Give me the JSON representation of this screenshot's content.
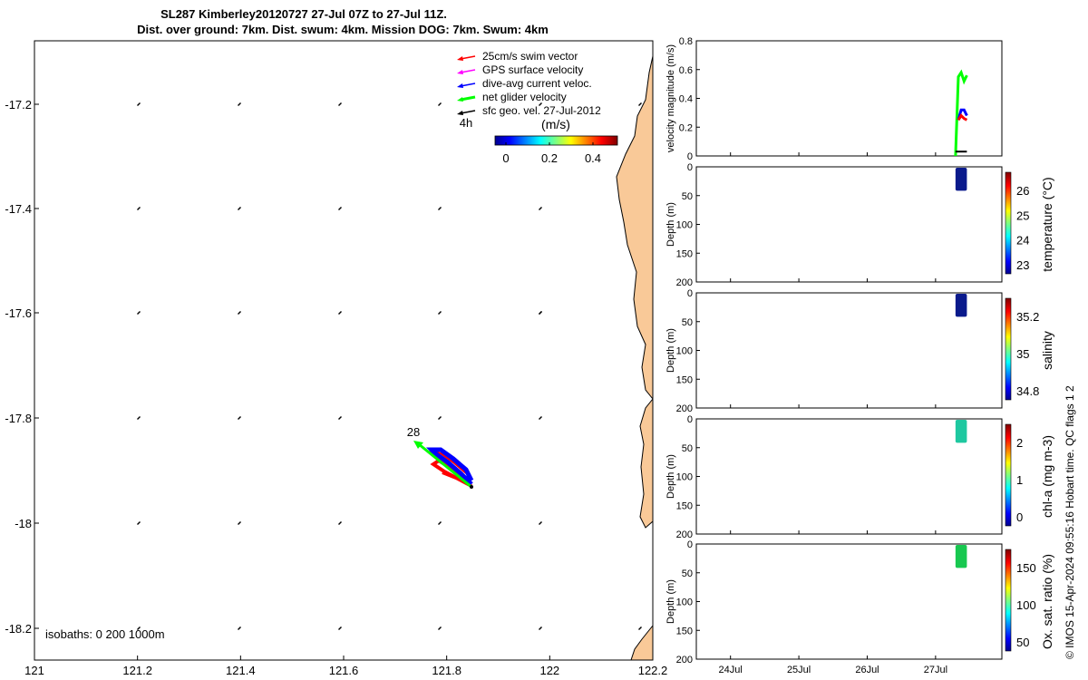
{
  "title": {
    "line1": "SL287 Kimberley20120727 27-Jul 07Z to 27-Jul 11Z.",
    "line2": "Dist. over ground: 7km. Dist. swum: 4km. Mission DOG: 7km. Swum: 4km"
  },
  "map": {
    "xticks": [
      "121",
      "121.2",
      "121.4",
      "121.6",
      "121.8",
      "122",
      "122.2"
    ],
    "yticks": [
      "-17.2",
      "-17.4",
      "-17.6",
      "-17.8",
      "-18",
      "-18.2"
    ],
    "legend": [
      {
        "label": "25cm/s swim vector",
        "color": "#ff0000"
      },
      {
        "label": "GPS surface velocity",
        "color": "#ff00ff"
      },
      {
        "label": "dive-avg current veloc.",
        "color": "#0000ff"
      },
      {
        "label": "net glider velocity",
        "color": "#00ff00"
      },
      {
        "label": "sfc geo. vel. 27-Jul-2012",
        "color": "#000000"
      }
    ],
    "legend_note": "4h",
    "colorbar": {
      "unit": "(m/s)",
      "ticks": [
        "0",
        "0.2",
        "0.4"
      ]
    },
    "track_label": "28",
    "isobaths_label": "isobaths: 0   200  1000m",
    "land_color": "#f9c998"
  },
  "chart_data": [
    {
      "type": "line",
      "ylabel": "velocity magnitude (m/s)",
      "ylim": [
        0,
        0.8
      ],
      "yticks": [
        "0",
        "0.2",
        "0.4",
        "0.6",
        "0.8"
      ],
      "series": [
        {
          "color": "#00ff00",
          "x": [
            "27Jul 07Z",
            "27Jul 08Z",
            "27Jul 09Z",
            "27Jul 10Z",
            "27Jul 11Z"
          ],
          "y": [
            0.0,
            0.55,
            0.58,
            0.52,
            0.56
          ]
        },
        {
          "color": "#0000ff",
          "x": [
            "27Jul 08Z",
            "27Jul 09Z",
            "27Jul 10Z",
            "27Jul 11Z"
          ],
          "y": [
            0.25,
            0.32,
            0.32,
            0.28
          ]
        },
        {
          "color": "#ff0000",
          "x": [
            "27Jul 08Z",
            "27Jul 09Z",
            "27Jul 10Z",
            "27Jul 11Z"
          ],
          "y": [
            0.25,
            0.28,
            0.26,
            0.25
          ]
        },
        {
          "color": "#000000",
          "x": [
            "27Jul 07Z",
            "27Jul 11Z"
          ],
          "y": [
            0.03,
            0.03
          ]
        }
      ]
    },
    {
      "type": "heatmap",
      "variable": "temperature (°C)",
      "ylabel": "Depth (m)",
      "ylim": [
        200,
        0
      ],
      "yticks": [
        "0",
        "50",
        "100",
        "150",
        "200"
      ],
      "colorbar_ticks": [
        "26",
        "25",
        "24",
        "23"
      ],
      "depth_range": [
        0,
        40
      ],
      "color": "#0a1a8c"
    },
    {
      "type": "heatmap",
      "variable": "salinity",
      "ylabel": "Depth (m)",
      "ylim": [
        200,
        0
      ],
      "yticks": [
        "0",
        "50",
        "100",
        "150",
        "200"
      ],
      "colorbar_ticks": [
        "35.2",
        "35",
        "34.8"
      ],
      "depth_range": [
        0,
        40
      ],
      "color": "#0a1a8c"
    },
    {
      "type": "heatmap",
      "variable": "chl-a (mg m-3)",
      "ylabel": "Depth (m)",
      "ylim": [
        200,
        0
      ],
      "yticks": [
        "0",
        "50",
        "100",
        "150",
        "200"
      ],
      "colorbar_ticks": [
        "2",
        "1",
        "0"
      ],
      "depth_range": [
        0,
        40
      ],
      "color": "#1ec8a0"
    },
    {
      "type": "heatmap",
      "variable": "Ox. sat. ratio (%)",
      "ylabel": "Depth (m)",
      "ylim": [
        200,
        0
      ],
      "yticks": [
        "0",
        "50",
        "100",
        "150",
        "200"
      ],
      "colorbar_ticks": [
        "150",
        "100",
        "50"
      ],
      "depth_range": [
        0,
        40
      ],
      "color": "#18c850"
    }
  ],
  "time_axis": {
    "ticks": [
      "24Jul",
      "25Jul",
      "26Jul",
      "27Jul"
    ]
  },
  "footer_note": "© IMOS 15-Apr-2024 09:55:16 Hobart time. QC flags 1  2"
}
